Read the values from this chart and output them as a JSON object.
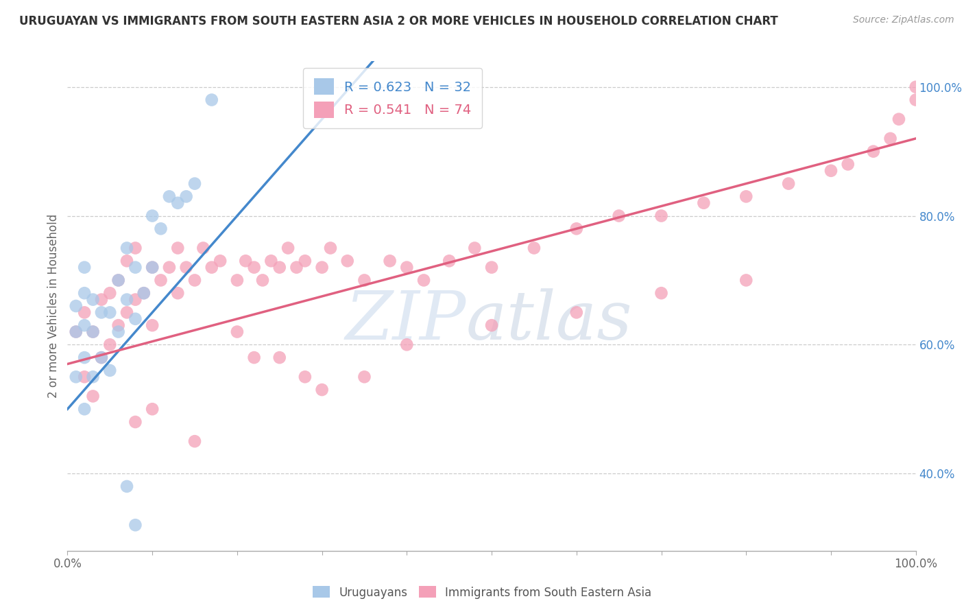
{
  "title": "URUGUAYAN VS IMMIGRANTS FROM SOUTH EASTERN ASIA 2 OR MORE VEHICLES IN HOUSEHOLD CORRELATION CHART",
  "source": "Source: ZipAtlas.com",
  "ylabel": "2 or more Vehicles in Household",
  "xlim": [
    0.0,
    1.0
  ],
  "ylim": [
    0.28,
    1.04
  ],
  "ytick_positions": [
    0.4,
    0.6,
    0.8,
    1.0
  ],
  "yticklabels_right": [
    "40.0%",
    "60.0%",
    "80.0%",
    "100.0%"
  ],
  "blue_R": 0.623,
  "blue_N": 32,
  "pink_R": 0.541,
  "pink_N": 74,
  "blue_color": "#a8c8e8",
  "pink_color": "#f4a0b8",
  "blue_line_color": "#4488cc",
  "pink_line_color": "#e06080",
  "watermark_zip": "ZIP",
  "watermark_atlas": "atlas",
  "blue_points_x": [
    0.01,
    0.01,
    0.01,
    0.02,
    0.02,
    0.02,
    0.02,
    0.02,
    0.03,
    0.03,
    0.03,
    0.04,
    0.04,
    0.05,
    0.05,
    0.06,
    0.06,
    0.07,
    0.07,
    0.08,
    0.08,
    0.09,
    0.1,
    0.1,
    0.11,
    0.12,
    0.13,
    0.14,
    0.15,
    0.17,
    0.07,
    0.08
  ],
  "blue_points_y": [
    0.55,
    0.62,
    0.66,
    0.5,
    0.58,
    0.63,
    0.68,
    0.72,
    0.55,
    0.62,
    0.67,
    0.58,
    0.65,
    0.56,
    0.65,
    0.62,
    0.7,
    0.67,
    0.75,
    0.64,
    0.72,
    0.68,
    0.72,
    0.8,
    0.78,
    0.83,
    0.82,
    0.83,
    0.85,
    0.98,
    0.38,
    0.32
  ],
  "pink_points_x": [
    0.01,
    0.02,
    0.02,
    0.03,
    0.03,
    0.04,
    0.04,
    0.05,
    0.05,
    0.06,
    0.06,
    0.07,
    0.07,
    0.08,
    0.08,
    0.09,
    0.1,
    0.1,
    0.11,
    0.12,
    0.13,
    0.13,
    0.14,
    0.15,
    0.16,
    0.17,
    0.18,
    0.2,
    0.21,
    0.22,
    0.23,
    0.24,
    0.25,
    0.26,
    0.27,
    0.28,
    0.3,
    0.31,
    0.33,
    0.35,
    0.38,
    0.4,
    0.42,
    0.45,
    0.48,
    0.5,
    0.55,
    0.6,
    0.65,
    0.7,
    0.75,
    0.8,
    0.85,
    0.9,
    0.92,
    0.95,
    0.97,
    0.98,
    1.0,
    1.0,
    0.2,
    0.25,
    0.3,
    0.35,
    0.1,
    0.08,
    0.15,
    0.22,
    0.28,
    0.4,
    0.5,
    0.6,
    0.7,
    0.8
  ],
  "pink_points_y": [
    0.62,
    0.55,
    0.65,
    0.52,
    0.62,
    0.58,
    0.67,
    0.6,
    0.68,
    0.63,
    0.7,
    0.65,
    0.73,
    0.67,
    0.75,
    0.68,
    0.63,
    0.72,
    0.7,
    0.72,
    0.68,
    0.75,
    0.72,
    0.7,
    0.75,
    0.72,
    0.73,
    0.7,
    0.73,
    0.72,
    0.7,
    0.73,
    0.72,
    0.75,
    0.72,
    0.73,
    0.72,
    0.75,
    0.73,
    0.7,
    0.73,
    0.72,
    0.7,
    0.73,
    0.75,
    0.72,
    0.75,
    0.78,
    0.8,
    0.8,
    0.82,
    0.83,
    0.85,
    0.87,
    0.88,
    0.9,
    0.92,
    0.95,
    0.98,
    1.0,
    0.62,
    0.58,
    0.53,
    0.55,
    0.5,
    0.48,
    0.45,
    0.58,
    0.55,
    0.6,
    0.63,
    0.65,
    0.68,
    0.7
  ]
}
